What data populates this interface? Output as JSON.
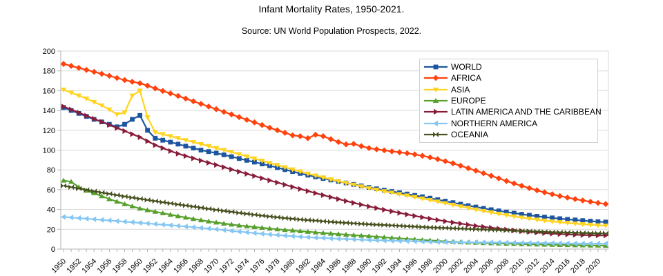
{
  "title": "Infant Mortality Rates, 1950-2021.",
  "subtitle": "Source: UN World Population Prospects, 2022.",
  "chart_data": {
    "type": "line",
    "x_years": {
      "start": 1950,
      "end": 2021,
      "step": 1
    },
    "x_tick_label_step": 2,
    "x_tick_labels": [
      1950,
      1952,
      1954,
      1956,
      1958,
      1960,
      1962,
      1964,
      1966,
      1968,
      1970,
      1972,
      1974,
      1976,
      1978,
      1980,
      1982,
      1984,
      1986,
      1988,
      1990,
      1992,
      1994,
      1996,
      1998,
      2000,
      2002,
      2004,
      2006,
      2008,
      2010,
      2012,
      2014,
      2016,
      2018,
      2020
    ],
    "ylim": [
      0,
      200
    ],
    "y_ticks": [
      0,
      20,
      40,
      60,
      80,
      100,
      120,
      140,
      160,
      180,
      200
    ],
    "grid": true,
    "grid_color": "#d9d9d9",
    "axis_color": "#b3b3b3",
    "label_color": "#000000",
    "legend_position": "top-right-inside",
    "legend_border_color": "#d0d0d0",
    "series": [
      {
        "name": "WORLD",
        "color": "#1d56a0",
        "marker": "square",
        "values": [
          143,
          140,
          137,
          134,
          131,
          128.5,
          126,
          123.5,
          126,
          131,
          135,
          120,
          112,
          110,
          108,
          106,
          104,
          102,
          100,
          98.5,
          96.9,
          95.2,
          93.4,
          91.5,
          89.6,
          87.8,
          86,
          84.2,
          82.3,
          80.3,
          78.3,
          76.4,
          74.6,
          72.9,
          71.3,
          69.8,
          68.3,
          66.8,
          65.3,
          63.8,
          62.3,
          60.9,
          59.5,
          58.2,
          56.9,
          55.6,
          54.2,
          52.8,
          51.4,
          49.9,
          48.4,
          46.9,
          45.4,
          43.9,
          42.5,
          41.1,
          39.8,
          38.6,
          37.4,
          36.3,
          35.2,
          34.2,
          33.2,
          32.3,
          31.5,
          30.7,
          30,
          29.4,
          28.8,
          28.2,
          27.7,
          27.3
        ]
      },
      {
        "name": "AFRICA",
        "color": "#ff420e",
        "marker": "diamond",
        "values": [
          187,
          185,
          183,
          181,
          179,
          177,
          175,
          172.8,
          170.7,
          169,
          167.5,
          165,
          162.3,
          159.7,
          157.2,
          154.7,
          152,
          149.3,
          146.7,
          144,
          141.3,
          138.6,
          136,
          133.3,
          130.6,
          128,
          125.3,
          122.6,
          120,
          117.4,
          114.9,
          114,
          112,
          115.5,
          114,
          111,
          108.2,
          105.8,
          106.3,
          104,
          102,
          100.8,
          99.7,
          98.7,
          97.8,
          96.8,
          95.6,
          94.2,
          92.6,
          90.8,
          88.8,
          86.6,
          84.2,
          81.7,
          79.2,
          76.6,
          74,
          71.4,
          68.8,
          66.3,
          63.9,
          61.6,
          59.4,
          57.3,
          55.4,
          53.6,
          52,
          50.5,
          49.1,
          47.8,
          46.6,
          45.5
        ]
      },
      {
        "name": "ASIA",
        "color": "#ffd320",
        "marker": "arrow-down",
        "values": [
          161,
          158,
          155,
          152,
          148.5,
          145,
          141,
          136,
          138,
          155,
          160,
          133,
          118,
          116,
          114,
          112,
          110,
          108,
          106,
          104,
          102,
          100,
          98,
          95.8,
          93.6,
          91.4,
          89.2,
          87,
          84.8,
          82.6,
          80.4,
          78.3,
          76.2,
          74.2,
          72.3,
          70.4,
          68.6,
          66.8,
          65,
          63.2,
          61.5,
          59.9,
          58.4,
          56.9,
          55.5,
          54.1,
          52.6,
          51.1,
          49.5,
          47.9,
          46.3,
          44.7,
          43.1,
          41.5,
          39.9,
          38.4,
          37,
          35.6,
          34.3,
          33,
          31.8,
          30.7,
          29.7,
          28.8,
          27.9,
          27.1,
          26.4,
          25.7,
          25.1,
          24.5,
          24,
          23.6
        ]
      },
      {
        "name": "EUROPE",
        "color": "#57a02c",
        "marker": "arrow-up",
        "values": [
          69.3,
          68,
          62.5,
          59,
          56.5,
          53.5,
          50.5,
          48,
          45.5,
          43.2,
          41,
          39.4,
          37.8,
          36.3,
          34.8,
          33.3,
          31.9,
          30.5,
          29.2,
          28,
          26.9,
          25.8,
          24.8,
          23.9,
          23.1,
          22.3,
          21.5,
          20.8,
          20.1,
          19.4,
          18.8,
          18.1,
          17.5,
          16.9,
          16.3,
          15.7,
          15.1,
          14.6,
          14.1,
          13.6,
          13.1,
          12.5,
          11.9,
          11.3,
          10.8,
          10.3,
          9.8,
          9.3,
          8.8,
          8.3,
          7.8,
          7.4,
          7,
          6.7,
          6.4,
          6.1,
          5.9,
          5.7,
          5.5,
          5.3,
          5.1,
          4.9,
          4.7,
          4.5,
          4.4,
          4.2,
          4.1,
          3.9,
          3.8,
          3.7,
          3.6,
          3.5
        ]
      },
      {
        "name": "LATIN AMERICA AND THE CARIBBEAN",
        "color": "#881d3a",
        "marker": "arrow-right",
        "values": [
          144,
          140.9,
          137.8,
          134.7,
          131.6,
          128.5,
          125.4,
          122.3,
          119.2,
          116.1,
          113,
          109,
          105,
          102,
          99,
          96.4,
          94,
          91.7,
          89.4,
          87.2,
          85,
          82.7,
          80.4,
          78.2,
          76,
          73.8,
          71.6,
          69.4,
          67.2,
          65,
          62.8,
          60.7,
          58.6,
          56.5,
          54.5,
          52.5,
          50.5,
          48.6,
          46.7,
          44.9,
          43.1,
          41.4,
          39.7,
          38.1,
          36.5,
          35,
          33.5,
          32.1,
          30.7,
          29.4,
          28.1,
          26.9,
          25.7,
          24.6,
          23.5,
          22.5,
          21.5,
          20.6,
          19.7,
          18.9,
          18.1,
          17.4,
          16.8,
          16.2,
          15.7,
          15.2,
          14.8,
          14.5,
          14.2,
          14,
          13.9,
          13.8
        ]
      },
      {
        "name": "NORTHERN AMERICA",
        "color": "#85c7f2",
        "marker": "arrow-left",
        "values": [
          32.5,
          31.9,
          31.3,
          30.7,
          30.1,
          29.5,
          28.9,
          28.3,
          27.7,
          27.1,
          26.5,
          25.9,
          25.3,
          24.7,
          24.1,
          23.5,
          22.8,
          22.1,
          21.4,
          20.7,
          20,
          19.2,
          18.4,
          17.6,
          16.9,
          16.2,
          15.5,
          14.8,
          14.2,
          13.6,
          13,
          12.5,
          12,
          11.6,
          11.2,
          10.8,
          10.4,
          10.1,
          9.8,
          9.5,
          9.2,
          8.9,
          8.6,
          8.4,
          8.2,
          8,
          7.8,
          7.6,
          7.4,
          7.2,
          7.1,
          7,
          6.9,
          6.9,
          6.8,
          6.7,
          6.7,
          6.6,
          6.5,
          6.4,
          6.2,
          6.1,
          6,
          5.9,
          5.9,
          5.8,
          5.7,
          5.7,
          5.6,
          5.6,
          5.5,
          5.5
        ]
      },
      {
        "name": "OCEANIA",
        "color": "#46511f",
        "marker": "bowtie",
        "values": [
          64,
          62.6,
          61.2,
          59.8,
          58.4,
          57.1,
          55.8,
          54.5,
          53.2,
          52,
          50.8,
          49.6,
          48.4,
          47.3,
          46.2,
          45.1,
          44,
          42.9,
          41.8,
          40.7,
          39.6,
          38.6,
          37.6,
          36.6,
          35.6,
          34.7,
          33.8,
          32.9,
          32.1,
          31.3,
          30.6,
          29.9,
          29.3,
          28.7,
          28.1,
          27.5,
          27,
          26.5,
          26,
          25.5,
          25.1,
          24.7,
          24.3,
          23.9,
          23.5,
          23.1,
          22.7,
          22.3,
          21.9,
          21.6,
          21.3,
          21,
          20.7,
          20.4,
          20.1,
          19.8,
          19.5,
          19.2,
          18.9,
          18.6,
          18.3,
          18,
          17.7,
          17.4,
          17.1,
          16.9,
          16.7,
          16.5,
          16.3,
          16.1,
          15.9,
          15.8
        ]
      }
    ]
  }
}
